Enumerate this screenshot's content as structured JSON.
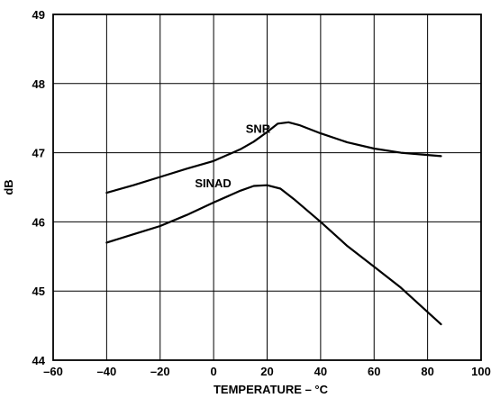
{
  "chart_data": {
    "type": "line",
    "title": "",
    "xlabel": "TEMPERATURE – °C",
    "ylabel": "dB",
    "xlim": [
      -60,
      100
    ],
    "ylim": [
      44,
      49
    ],
    "xticks": [
      -60,
      -40,
      -20,
      0,
      20,
      40,
      60,
      80,
      100
    ],
    "yticks": [
      44,
      45,
      46,
      47,
      48,
      49
    ],
    "grid": true,
    "legend": "none",
    "colors": {
      "line": "#000000",
      "grid": "#000000",
      "background": "#ffffff"
    },
    "series": [
      {
        "name": "SNR",
        "x": [
          -40,
          -30,
          -20,
          -10,
          0,
          10,
          15,
          20,
          24,
          28,
          32,
          40,
          50,
          60,
          70,
          85
        ],
        "y": [
          46.42,
          46.53,
          46.65,
          46.77,
          46.88,
          47.05,
          47.16,
          47.3,
          47.42,
          47.44,
          47.4,
          47.28,
          47.15,
          47.06,
          47.0,
          46.95
        ]
      },
      {
        "name": "SINAD",
        "x": [
          -40,
          -30,
          -20,
          -10,
          0,
          10,
          15,
          20,
          25,
          30,
          40,
          50,
          60,
          70,
          85
        ],
        "y": [
          45.7,
          45.82,
          45.94,
          46.1,
          46.28,
          46.45,
          46.52,
          46.53,
          46.48,
          46.33,
          46.0,
          45.65,
          45.35,
          45.05,
          44.52
        ]
      }
    ]
  }
}
